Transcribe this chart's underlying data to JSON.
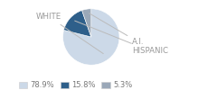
{
  "labels": [
    "WHITE",
    "HISPANIC",
    "A.I."
  ],
  "values": [
    78.9,
    15.8,
    5.3
  ],
  "colors": [
    "#ccd9e8",
    "#2e5f8a",
    "#9aa8b8"
  ],
  "legend_labels": [
    "78.9%",
    "15.8%",
    "5.3%"
  ],
  "startangle": 90,
  "figsize": [
    2.4,
    1.0
  ],
  "dpi": 100
}
